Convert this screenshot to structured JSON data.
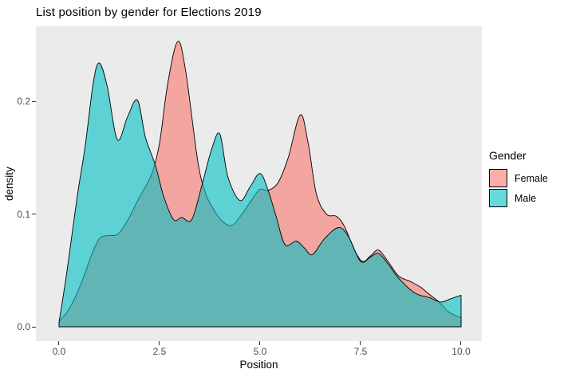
{
  "chart_data": {
    "type": "area",
    "subtype": "density",
    "title": "List position by gender for Elections 2019",
    "xlabel": "Position",
    "ylabel": "density",
    "legend_title": "Gender",
    "legend_position": "right",
    "grid": "none",
    "panel_background": "#EBEBEB",
    "outline_color": "#000000",
    "fill_alpha": 0.6,
    "axis_text_color": "#4D4D4D",
    "xlim": [
      -0.575,
      10.516
    ],
    "ylim": [
      -0.0127,
      0.2665
    ],
    "x_ticks": [
      {
        "label": "0.0",
        "value": 0
      },
      {
        "label": "2.5",
        "value": 2.5
      },
      {
        "label": "5.0",
        "value": 5
      },
      {
        "label": "7.5",
        "value": 7.5
      },
      {
        "label": "10.0",
        "value": 10
      }
    ],
    "y_ticks": [
      {
        "label": "0.0",
        "value": 0
      },
      {
        "label": "0.1",
        "value": 0.1
      },
      {
        "label": "0.2",
        "value": 0.2
      }
    ],
    "series": [
      {
        "name": "Female",
        "color": "#F8766D",
        "points": [
          [
            0.0,
            0.005
          ],
          [
            0.2,
            0.013
          ],
          [
            0.4,
            0.026
          ],
          [
            0.6,
            0.043
          ],
          [
            0.8,
            0.063
          ],
          [
            1.0,
            0.078
          ],
          [
            1.2,
            0.081
          ],
          [
            1.45,
            0.082
          ],
          [
            1.7,
            0.094
          ],
          [
            2.0,
            0.115
          ],
          [
            2.3,
            0.135
          ],
          [
            2.5,
            0.163
          ],
          [
            2.7,
            0.215
          ],
          [
            2.95,
            0.253
          ],
          [
            3.15,
            0.227
          ],
          [
            3.45,
            0.147
          ],
          [
            3.65,
            0.118
          ],
          [
            3.85,
            0.104
          ],
          [
            4.05,
            0.094
          ],
          [
            4.3,
            0.09
          ],
          [
            4.55,
            0.1
          ],
          [
            4.8,
            0.113
          ],
          [
            5.0,
            0.122
          ],
          [
            5.2,
            0.121
          ],
          [
            5.45,
            0.128
          ],
          [
            5.7,
            0.15
          ],
          [
            6.0,
            0.188
          ],
          [
            6.2,
            0.162
          ],
          [
            6.4,
            0.118
          ],
          [
            6.65,
            0.1
          ],
          [
            6.9,
            0.098
          ],
          [
            7.1,
            0.089
          ],
          [
            7.35,
            0.068
          ],
          [
            7.55,
            0.058
          ],
          [
            7.75,
            0.063
          ],
          [
            7.95,
            0.068
          ],
          [
            8.2,
            0.057
          ],
          [
            8.45,
            0.045
          ],
          [
            8.75,
            0.04
          ],
          [
            9.0,
            0.035
          ],
          [
            9.2,
            0.029
          ],
          [
            9.45,
            0.022
          ],
          [
            9.7,
            0.013
          ],
          [
            10.0,
            0.008
          ]
        ]
      },
      {
        "name": "Male",
        "color": "#00BFC4",
        "points": [
          [
            0.0,
            0.004
          ],
          [
            0.2,
            0.05
          ],
          [
            0.45,
            0.115
          ],
          [
            0.65,
            0.16
          ],
          [
            0.85,
            0.216
          ],
          [
            1.0,
            0.234
          ],
          [
            1.2,
            0.213
          ],
          [
            1.45,
            0.166
          ],
          [
            1.7,
            0.186
          ],
          [
            1.95,
            0.201
          ],
          [
            2.15,
            0.168
          ],
          [
            2.4,
            0.143
          ],
          [
            2.6,
            0.116
          ],
          [
            2.85,
            0.095
          ],
          [
            3.05,
            0.097
          ],
          [
            3.3,
            0.095
          ],
          [
            3.55,
            0.125
          ],
          [
            3.8,
            0.158
          ],
          [
            4.0,
            0.171
          ],
          [
            4.2,
            0.133
          ],
          [
            4.5,
            0.112
          ],
          [
            4.75,
            0.124
          ],
          [
            5.0,
            0.136
          ],
          [
            5.2,
            0.121
          ],
          [
            5.4,
            0.098
          ],
          [
            5.62,
            0.073
          ],
          [
            5.9,
            0.076
          ],
          [
            6.1,
            0.07
          ],
          [
            6.3,
            0.064
          ],
          [
            6.6,
            0.078
          ],
          [
            6.95,
            0.088
          ],
          [
            7.2,
            0.08
          ],
          [
            7.5,
            0.058
          ],
          [
            7.75,
            0.062
          ],
          [
            7.95,
            0.065
          ],
          [
            8.2,
            0.055
          ],
          [
            8.45,
            0.043
          ],
          [
            8.85,
            0.03
          ],
          [
            9.2,
            0.026
          ],
          [
            9.5,
            0.022
          ],
          [
            9.75,
            0.025
          ],
          [
            10.0,
            0.028
          ]
        ]
      }
    ]
  }
}
